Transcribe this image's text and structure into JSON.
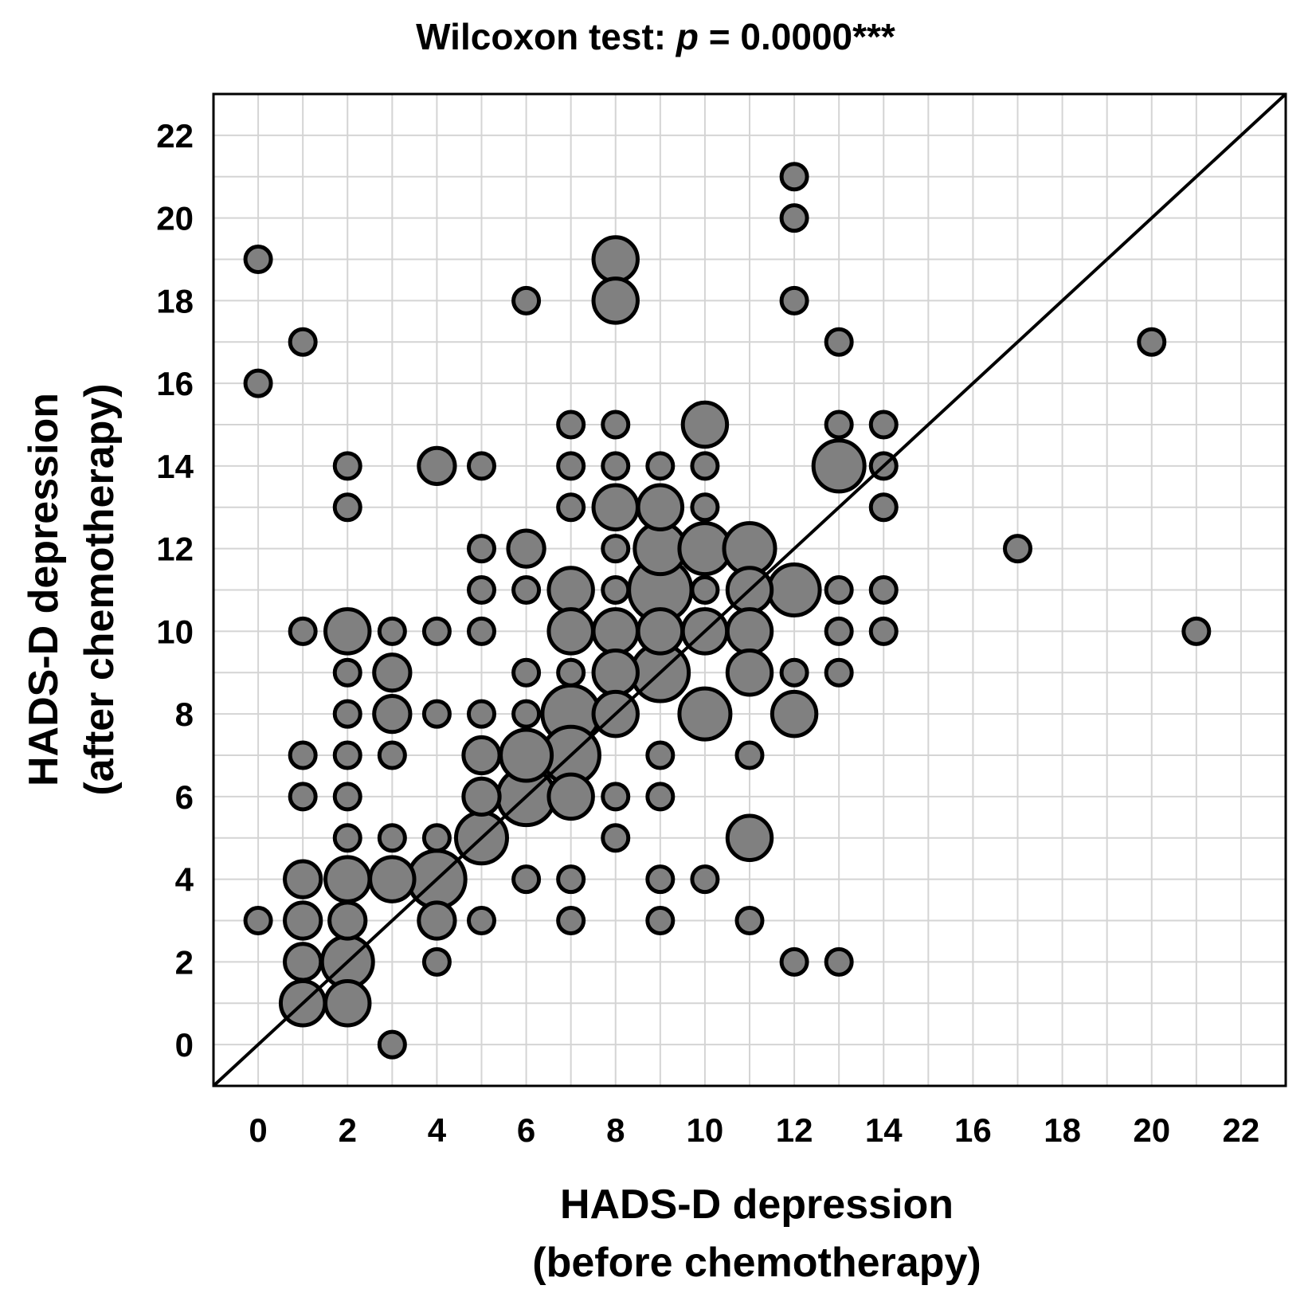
{
  "chart_data": {
    "type": "scatter",
    "title_prefix": "Wilcoxon test: ",
    "title_italic": "p",
    "title_suffix": " = 0.0000***",
    "xlabel_line1": "HADS-D depression",
    "xlabel_line2": "(before chemotherapy)",
    "ylabel_line1": "HADS-D depression",
    "ylabel_line2": "(after chemotherapy)",
    "xlim": [
      -1,
      23
    ],
    "ylim": [
      -1,
      23
    ],
    "xticks": [
      0,
      2,
      4,
      6,
      8,
      10,
      12,
      14,
      16,
      18,
      20,
      22
    ],
    "yticks": [
      0,
      2,
      4,
      6,
      8,
      10,
      12,
      14,
      16,
      18,
      20,
      22
    ],
    "grid": true,
    "reference_line": "y = x",
    "size_encoding": "number of patients at each point",
    "points": [
      {
        "x": 0,
        "y": 19,
        "n": 1
      },
      {
        "x": 0,
        "y": 16,
        "n": 1
      },
      {
        "x": 0,
        "y": 3,
        "n": 1
      },
      {
        "x": 1,
        "y": 17,
        "n": 1
      },
      {
        "x": 1,
        "y": 10,
        "n": 1
      },
      {
        "x": 1,
        "y": 7,
        "n": 1
      },
      {
        "x": 1,
        "y": 6,
        "n": 1
      },
      {
        "x": 1,
        "y": 4,
        "n": 2
      },
      {
        "x": 1,
        "y": 3,
        "n": 2
      },
      {
        "x": 1,
        "y": 2,
        "n": 2
      },
      {
        "x": 1,
        "y": 1,
        "n": 3
      },
      {
        "x": 2,
        "y": 14,
        "n": 1
      },
      {
        "x": 2,
        "y": 13,
        "n": 1
      },
      {
        "x": 2,
        "y": 10,
        "n": 3
      },
      {
        "x": 2,
        "y": 9,
        "n": 1
      },
      {
        "x": 2,
        "y": 8,
        "n": 1
      },
      {
        "x": 2,
        "y": 7,
        "n": 1
      },
      {
        "x": 2,
        "y": 6,
        "n": 1
      },
      {
        "x": 2,
        "y": 5,
        "n": 1
      },
      {
        "x": 2,
        "y": 4,
        "n": 3
      },
      {
        "x": 2,
        "y": 3,
        "n": 2
      },
      {
        "x": 2,
        "y": 2,
        "n": 4
      },
      {
        "x": 2,
        "y": 1,
        "n": 3
      },
      {
        "x": 3,
        "y": 10,
        "n": 1
      },
      {
        "x": 3,
        "y": 9,
        "n": 2
      },
      {
        "x": 3,
        "y": 8,
        "n": 2
      },
      {
        "x": 3,
        "y": 7,
        "n": 1
      },
      {
        "x": 3,
        "y": 5,
        "n": 1
      },
      {
        "x": 3,
        "y": 4,
        "n": 3
      },
      {
        "x": 3,
        "y": 0,
        "n": 1
      },
      {
        "x": 4,
        "y": 14,
        "n": 2
      },
      {
        "x": 4,
        "y": 10,
        "n": 1
      },
      {
        "x": 4,
        "y": 8,
        "n": 1
      },
      {
        "x": 4,
        "y": 5,
        "n": 1
      },
      {
        "x": 4,
        "y": 4,
        "n": 5
      },
      {
        "x": 4,
        "y": 3,
        "n": 2
      },
      {
        "x": 4,
        "y": 2,
        "n": 1
      },
      {
        "x": 5,
        "y": 14,
        "n": 1
      },
      {
        "x": 5,
        "y": 12,
        "n": 1
      },
      {
        "x": 5,
        "y": 11,
        "n": 1
      },
      {
        "x": 5,
        "y": 10,
        "n": 1
      },
      {
        "x": 5,
        "y": 8,
        "n": 1
      },
      {
        "x": 5,
        "y": 7,
        "n": 2
      },
      {
        "x": 5,
        "y": 6,
        "n": 2
      },
      {
        "x": 5,
        "y": 5,
        "n": 4
      },
      {
        "x": 5,
        "y": 3,
        "n": 1
      },
      {
        "x": 6,
        "y": 18,
        "n": 1
      },
      {
        "x": 6,
        "y": 12,
        "n": 2
      },
      {
        "x": 6,
        "y": 11,
        "n": 1
      },
      {
        "x": 6,
        "y": 9,
        "n": 1
      },
      {
        "x": 6,
        "y": 8,
        "n": 1
      },
      {
        "x": 6,
        "y": 7,
        "n": 4
      },
      {
        "x": 6,
        "y": 6,
        "n": 5
      },
      {
        "x": 6,
        "y": 4,
        "n": 1
      },
      {
        "x": 7,
        "y": 15,
        "n": 1
      },
      {
        "x": 7,
        "y": 14,
        "n": 1
      },
      {
        "x": 7,
        "y": 13,
        "n": 1
      },
      {
        "x": 7,
        "y": 11,
        "n": 3
      },
      {
        "x": 7,
        "y": 10,
        "n": 3
      },
      {
        "x": 7,
        "y": 9,
        "n": 1
      },
      {
        "x": 7,
        "y": 8,
        "n": 5
      },
      {
        "x": 7,
        "y": 7,
        "n": 5
      },
      {
        "x": 7,
        "y": 6,
        "n": 3
      },
      {
        "x": 7,
        "y": 4,
        "n": 1
      },
      {
        "x": 7,
        "y": 3,
        "n": 1
      },
      {
        "x": 8,
        "y": 19,
        "n": 3
      },
      {
        "x": 8,
        "y": 18,
        "n": 3
      },
      {
        "x": 8,
        "y": 15,
        "n": 1
      },
      {
        "x": 8,
        "y": 14,
        "n": 1
      },
      {
        "x": 8,
        "y": 13,
        "n": 3
      },
      {
        "x": 8,
        "y": 12,
        "n": 1
      },
      {
        "x": 8,
        "y": 11,
        "n": 1
      },
      {
        "x": 8,
        "y": 10,
        "n": 3
      },
      {
        "x": 8,
        "y": 9,
        "n": 3
      },
      {
        "x": 8,
        "y": 8,
        "n": 3
      },
      {
        "x": 8,
        "y": 6,
        "n": 1
      },
      {
        "x": 8,
        "y": 5,
        "n": 1
      },
      {
        "x": 9,
        "y": 14,
        "n": 1
      },
      {
        "x": 9,
        "y": 13,
        "n": 3
      },
      {
        "x": 9,
        "y": 12,
        "n": 4
      },
      {
        "x": 9,
        "y": 11,
        "n": 6
      },
      {
        "x": 9,
        "y": 10,
        "n": 3
      },
      {
        "x": 9,
        "y": 9,
        "n": 5
      },
      {
        "x": 9,
        "y": 7,
        "n": 1
      },
      {
        "x": 9,
        "y": 6,
        "n": 1
      },
      {
        "x": 9,
        "y": 4,
        "n": 1
      },
      {
        "x": 9,
        "y": 3,
        "n": 1
      },
      {
        "x": 10,
        "y": 15,
        "n": 3
      },
      {
        "x": 10,
        "y": 14,
        "n": 1
      },
      {
        "x": 10,
        "y": 13,
        "n": 1
      },
      {
        "x": 10,
        "y": 12,
        "n": 4
      },
      {
        "x": 10,
        "y": 11,
        "n": 1
      },
      {
        "x": 10,
        "y": 10,
        "n": 3
      },
      {
        "x": 10,
        "y": 8,
        "n": 4
      },
      {
        "x": 10,
        "y": 4,
        "n": 1
      },
      {
        "x": 11,
        "y": 12,
        "n": 4
      },
      {
        "x": 11,
        "y": 11,
        "n": 3
      },
      {
        "x": 11,
        "y": 10,
        "n": 3
      },
      {
        "x": 11,
        "y": 9,
        "n": 3
      },
      {
        "x": 11,
        "y": 7,
        "n": 1
      },
      {
        "x": 11,
        "y": 5,
        "n": 3
      },
      {
        "x": 11,
        "y": 3,
        "n": 1
      },
      {
        "x": 12,
        "y": 21,
        "n": 1
      },
      {
        "x": 12,
        "y": 20,
        "n": 1
      },
      {
        "x": 12,
        "y": 18,
        "n": 1
      },
      {
        "x": 12,
        "y": 11,
        "n": 4
      },
      {
        "x": 12,
        "y": 9,
        "n": 1
      },
      {
        "x": 12,
        "y": 8,
        "n": 3
      },
      {
        "x": 12,
        "y": 2,
        "n": 1
      },
      {
        "x": 13,
        "y": 17,
        "n": 1
      },
      {
        "x": 13,
        "y": 15,
        "n": 1
      },
      {
        "x": 13,
        "y": 14,
        "n": 4
      },
      {
        "x": 13,
        "y": 11,
        "n": 1
      },
      {
        "x": 13,
        "y": 10,
        "n": 1
      },
      {
        "x": 13,
        "y": 9,
        "n": 1
      },
      {
        "x": 13,
        "y": 2,
        "n": 1
      },
      {
        "x": 14,
        "y": 15,
        "n": 1
      },
      {
        "x": 14,
        "y": 14,
        "n": 1
      },
      {
        "x": 14,
        "y": 13,
        "n": 1
      },
      {
        "x": 14,
        "y": 11,
        "n": 1
      },
      {
        "x": 14,
        "y": 10,
        "n": 1
      },
      {
        "x": 17,
        "y": 12,
        "n": 1
      },
      {
        "x": 20,
        "y": 17,
        "n": 1
      },
      {
        "x": 21,
        "y": 10,
        "n": 1
      }
    ]
  }
}
